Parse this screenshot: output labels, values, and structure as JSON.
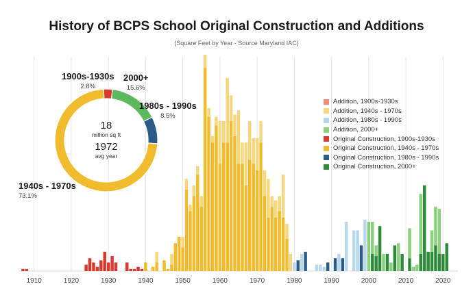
{
  "chart_data": {
    "type": "bar",
    "title": "History of BCPS School Original Construction and Additions",
    "subtitle": "(Square Feet by Year - Source Maryland IAC)",
    "x_ticks": [
      1910,
      1920,
      1930,
      1940,
      1950,
      1960,
      1970,
      1980,
      1990,
      2000,
      2010,
      2020
    ],
    "xlim": [
      1906,
      2024
    ],
    "ylim": [
      0,
      100
    ],
    "colors": {
      "Addition, 1900s-1930s": "#f28b7a",
      "Addition, 1940s - 1970s": "#f7d67e",
      "Addition, 1980s - 1990s": "#b9d7ea",
      "Addition, 2000+": "#8ccf7e",
      "Original Construction, 1900s-1930s": "#d83a2e",
      "Original Construction, 1940s - 1970s": "#f0bb2c",
      "Original Construction, 1980s - 1990s": "#2b5b87",
      "Original Construction, 2000+": "#2e8b3a"
    },
    "legend": [
      "Addition, 1900s-1930s",
      "Addition, 1940s - 1970s",
      "Addition, 1980s - 1990s",
      "Addition, 2000+",
      "Original Construction, 1900s-1930s",
      "Original Construction, 1940s - 1970s",
      "Original Construction, 1980s - 1990s",
      "Original Construction, 2000+"
    ],
    "legend_position": "right",
    "bars": [
      {
        "year": 1907,
        "original": 1,
        "addition": 0
      },
      {
        "year": 1908,
        "original": 1,
        "addition": 0
      },
      {
        "year": 1924,
        "original": 3,
        "addition": 0
      },
      {
        "year": 1925,
        "original": 6,
        "addition": 0
      },
      {
        "year": 1926,
        "original": 4,
        "addition": 0
      },
      {
        "year": 1927,
        "original": 2,
        "addition": 0
      },
      {
        "year": 1928,
        "original": 5,
        "addition": 0
      },
      {
        "year": 1929,
        "original": 9,
        "addition": 0
      },
      {
        "year": 1930,
        "original": 4,
        "addition": 0
      },
      {
        "year": 1931,
        "original": 7,
        "addition": 0
      },
      {
        "year": 1932,
        "original": 4,
        "addition": 0
      },
      {
        "year": 1935,
        "original": 4,
        "addition": 0
      },
      {
        "year": 1936,
        "original": 1,
        "addition": 0
      },
      {
        "year": 1937,
        "original": 1,
        "addition": 0
      },
      {
        "year": 1938,
        "original": 2,
        "addition": 0
      },
      {
        "year": 1939,
        "original": 1,
        "addition": 0
      },
      {
        "year": 1940,
        "original": 4,
        "addition": 0
      },
      {
        "year": 1942,
        "original": 2,
        "addition": 0
      },
      {
        "year": 1943,
        "original": 4,
        "addition": 5
      },
      {
        "year": 1945,
        "original": 5,
        "addition": 0
      },
      {
        "year": 1946,
        "original": 1,
        "addition": 0
      },
      {
        "year": 1947,
        "original": 3,
        "addition": 5
      },
      {
        "year": 1948,
        "original": 13,
        "addition": 0
      },
      {
        "year": 1949,
        "original": 16,
        "addition": 0
      },
      {
        "year": 1950,
        "original": 11,
        "addition": 5
      },
      {
        "year": 1951,
        "original": 38,
        "addition": 5
      },
      {
        "year": 1952,
        "original": 28,
        "addition": 3
      },
      {
        "year": 1953,
        "original": 35,
        "addition": 5
      },
      {
        "year": 1954,
        "original": 45,
        "addition": 4
      },
      {
        "year": 1955,
        "original": 30,
        "addition": 5
      },
      {
        "year": 1956,
        "original": 95,
        "addition": 6
      },
      {
        "year": 1957,
        "original": 72,
        "addition": 4
      },
      {
        "year": 1958,
        "original": 60,
        "addition": 3
      },
      {
        "year": 1959,
        "original": 68,
        "addition": 4
      },
      {
        "year": 1960,
        "original": 50,
        "addition": 20
      },
      {
        "year": 1961,
        "original": 60,
        "addition": 10
      },
      {
        "year": 1962,
        "original": 60,
        "addition": 30
      },
      {
        "year": 1963,
        "original": 70,
        "addition": 12
      },
      {
        "year": 1964,
        "original": 63,
        "addition": 10
      },
      {
        "year": 1965,
        "original": 50,
        "addition": 25
      },
      {
        "year": 1966,
        "original": 50,
        "addition": 10
      },
      {
        "year": 1967,
        "original": 40,
        "addition": 20
      },
      {
        "year": 1968,
        "original": 52,
        "addition": 18
      },
      {
        "year": 1969,
        "original": 50,
        "addition": 12
      },
      {
        "year": 1970,
        "original": 47,
        "addition": 15
      },
      {
        "year": 1971,
        "original": 60,
        "addition": 10
      },
      {
        "year": 1972,
        "original": 35,
        "addition": 12
      },
      {
        "year": 1973,
        "original": 25,
        "addition": 18
      },
      {
        "year": 1974,
        "original": 30,
        "addition": 5
      },
      {
        "year": 1975,
        "original": 25,
        "addition": 8
      },
      {
        "year": 1976,
        "original": 28,
        "addition": 7
      },
      {
        "year": 1977,
        "original": 25,
        "addition": 20
      },
      {
        "year": 1978,
        "original": 15,
        "addition": 7
      },
      {
        "year": 1979,
        "original": 0,
        "addition": 8
      },
      {
        "year": 1980,
        "original": 0,
        "addition": 4
      },
      {
        "year": 1981,
        "original": 5,
        "addition": 0
      },
      {
        "year": 1982,
        "original": 0,
        "addition": 8
      },
      {
        "year": 1983,
        "original": 9,
        "addition": 0
      },
      {
        "year": 1986,
        "original": 0,
        "addition": 3
      },
      {
        "year": 1987,
        "original": 0,
        "addition": 3
      },
      {
        "year": 1988,
        "original": 0,
        "addition": 2
      },
      {
        "year": 1989,
        "original": 4,
        "addition": 0
      },
      {
        "year": 1991,
        "original": 6,
        "addition": 0
      },
      {
        "year": 1992,
        "original": 0,
        "addition": 8
      },
      {
        "year": 1993,
        "original": 6,
        "addition": 0
      },
      {
        "year": 1994,
        "original": 0,
        "addition": 23
      },
      {
        "year": 1996,
        "original": 0,
        "addition": 19
      },
      {
        "year": 1997,
        "original": 0,
        "addition": 19
      },
      {
        "year": 1998,
        "original": 12,
        "addition": 0
      },
      {
        "year": 1999,
        "original": 0,
        "addition": 24
      },
      {
        "year": 2000,
        "original": 0,
        "addition": 23
      },
      {
        "year": 2001,
        "original": 8,
        "addition": 15
      },
      {
        "year": 2002,
        "original": 7,
        "addition": 5
      },
      {
        "year": 2003,
        "original": 21,
        "addition": 0
      },
      {
        "year": 2004,
        "original": 0,
        "addition": 8
      },
      {
        "year": 2005,
        "original": 8,
        "addition": 0
      },
      {
        "year": 2006,
        "original": 0,
        "addition": 4
      },
      {
        "year": 2007,
        "original": 12,
        "addition": 0
      },
      {
        "year": 2008,
        "original": 0,
        "addition": 13
      },
      {
        "year": 2009,
        "original": 8,
        "addition": 0
      },
      {
        "year": 2011,
        "original": 6,
        "addition": 14
      },
      {
        "year": 2012,
        "original": 0,
        "addition": 2
      },
      {
        "year": 2013,
        "original": 0,
        "addition": 3
      },
      {
        "year": 2014,
        "original": 8,
        "addition": 28
      },
      {
        "year": 2015,
        "original": 40,
        "addition": 0
      },
      {
        "year": 2016,
        "original": 9,
        "addition": 0
      },
      {
        "year": 2017,
        "original": 9,
        "addition": 10
      },
      {
        "year": 2018,
        "original": 12,
        "addition": 18
      },
      {
        "year": 2019,
        "original": 8,
        "addition": 21
      },
      {
        "year": 2020,
        "original": 8,
        "addition": 0
      },
      {
        "year": 2021,
        "original": 13,
        "addition": 0
      }
    ],
    "donut": {
      "center_value": "18",
      "center_unit": "million sq ft",
      "center_year": "1972",
      "center_year_label": "avg year",
      "slices": [
        {
          "name": "1900s-1930s",
          "pct": 2.8,
          "label": "2.8%",
          "color": "#d83a2e"
        },
        {
          "name": "2000+",
          "pct": 15.6,
          "label": "15.6%",
          "color": "#5cb85c"
        },
        {
          "name": "1980s - 1990s",
          "pct": 8.5,
          "label": "8.5%",
          "color": "#2b5b87"
        },
        {
          "name": "1940s - 1970s",
          "pct": 73.1,
          "label": "73.1%",
          "color": "#f0bb2c"
        }
      ]
    }
  }
}
